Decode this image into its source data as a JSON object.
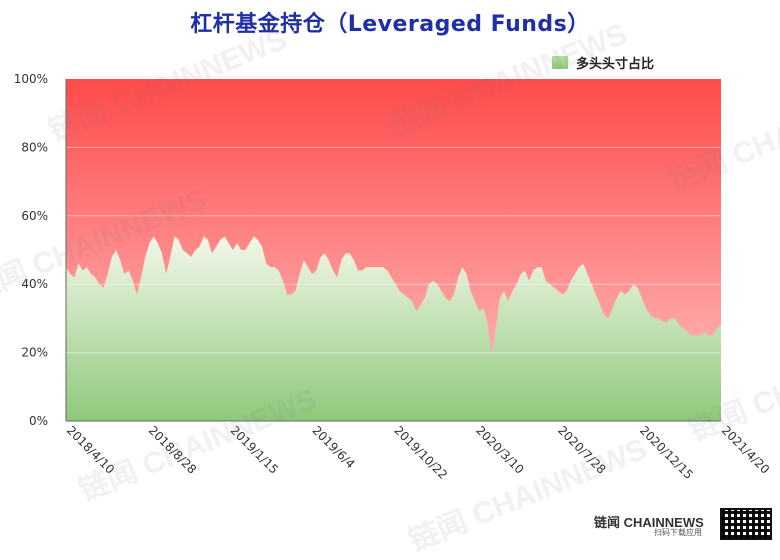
{
  "chart_data": {
    "type": "area",
    "title": "杠杆基金持仓（Leveraged Funds）",
    "legend": [
      "多头头寸占比"
    ],
    "legend_position": "top-right",
    "ylim": [
      0,
      100
    ],
    "y_ticks": [
      "0%",
      "20%",
      "40%",
      "60%",
      "80%",
      "100%"
    ],
    "x_tick_labels": [
      "2018/4/10",
      "2018/8/28",
      "2019/1/15",
      "2019/6/4",
      "2019/10/22",
      "2020/3/10",
      "2020/7/28",
      "2020/12/15",
      "2021/4/20"
    ],
    "grid": true,
    "series": [
      {
        "name": "多头头寸占比",
        "values": [
          45,
          43,
          42,
          46,
          44,
          45,
          43,
          42,
          40,
          39,
          43,
          48,
          50,
          47,
          43,
          44,
          41,
          37,
          42,
          48,
          52,
          54,
          52,
          49,
          43,
          48,
          54,
          53,
          50,
          49,
          48,
          50,
          51,
          54,
          53,
          49,
          51,
          53,
          54,
          52,
          50,
          52,
          50,
          50,
          52,
          54,
          53,
          51,
          46,
          45,
          45,
          44,
          41,
          37,
          37,
          38,
          43,
          47,
          45,
          43,
          44,
          48,
          49,
          47,
          44,
          42,
          47,
          49,
          49,
          47,
          44,
          44,
          45,
          45,
          45,
          45,
          45,
          44,
          42,
          40,
          38,
          37,
          36,
          35,
          32,
          34,
          36,
          40,
          41,
          40,
          38,
          36,
          35,
          37,
          42,
          45,
          43,
          38,
          35,
          32,
          33,
          29,
          19,
          27,
          36,
          38,
          35,
          38,
          40,
          43,
          44,
          41,
          44,
          45,
          45,
          41,
          40,
          39,
          38,
          37,
          38,
          41,
          43,
          45,
          46,
          43,
          40,
          37,
          34,
          31,
          30,
          33,
          36,
          38,
          37,
          38,
          40,
          39,
          36,
          33,
          31,
          30,
          30,
          29,
          29,
          30,
          30,
          28,
          27,
          26,
          25,
          25,
          25,
          26,
          25,
          25,
          27,
          28
        ]
      }
    ],
    "colors": {
      "long_fill_top": "#f3f7e9",
      "long_fill_bottom": "#8ec97a",
      "short_fill_top": "#ff4a4a",
      "short_fill_bottom": "#ffc6c6"
    }
  },
  "watermark": "链闻 CHAINNEWS",
  "brand": {
    "name": "链闻 CHAINNEWS",
    "sub": "扫码下载应用"
  }
}
